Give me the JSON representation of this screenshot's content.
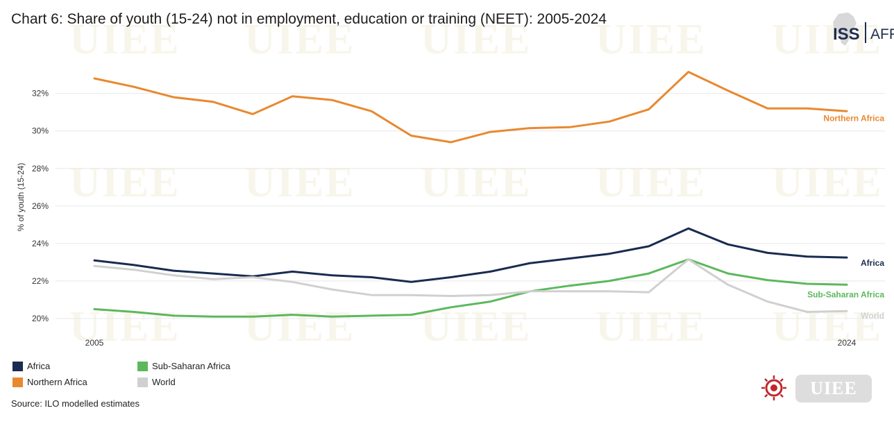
{
  "header": {
    "title": "Chart 6: Share of youth (15-24) not in employment, education or training (NEET): 2005-2024"
  },
  "logo": {
    "text": "ISS",
    "suffix": "AFRICA"
  },
  "chart_data": {
    "type": "line",
    "title": "Chart 6: Share of youth (15-24) not in employment, education or training (NEET): 2005-2024",
    "xlabel": "",
    "ylabel": "% of youth (15-24)",
    "x": [
      2005,
      2006,
      2007,
      2008,
      2009,
      2010,
      2011,
      2012,
      2013,
      2014,
      2015,
      2016,
      2017,
      2018,
      2019,
      2020,
      2021,
      2022,
      2023,
      2024
    ],
    "x_tick_labels": [
      "2005",
      "2024"
    ],
    "ylim": [
      19,
      33.8
    ],
    "y_ticks": [
      20,
      22,
      24,
      26,
      28,
      30,
      32
    ],
    "y_tick_format": "%",
    "grid": "horizontal",
    "legend_position": "bottom-left",
    "series": [
      {
        "name": "Northern Africa",
        "color": "#e8892f",
        "values": [
          32.8,
          32.35,
          31.8,
          31.55,
          30.9,
          31.85,
          31.65,
          31.05,
          29.75,
          29.4,
          29.95,
          30.15,
          30.2,
          30.5,
          31.15,
          33.15,
          32.15,
          31.2,
          31.2,
          31.05
        ]
      },
      {
        "name": "Africa",
        "color": "#1a2b50",
        "values": [
          23.1,
          22.85,
          22.55,
          22.4,
          22.25,
          22.5,
          22.3,
          22.2,
          21.95,
          22.2,
          22.5,
          22.95,
          23.2,
          23.45,
          23.85,
          24.8,
          23.95,
          23.5,
          23.3,
          23.25
        ]
      },
      {
        "name": "Sub-Saharan Africa",
        "color": "#5cb85c",
        "values": [
          20.5,
          20.35,
          20.15,
          20.1,
          20.1,
          20.2,
          20.1,
          20.15,
          20.2,
          20.6,
          20.9,
          21.45,
          21.75,
          22.0,
          22.4,
          23.15,
          22.4,
          22.05,
          21.85,
          21.8
        ]
      },
      {
        "name": "World",
        "color": "#d0d0d0",
        "values": [
          22.8,
          22.6,
          22.3,
          22.1,
          22.2,
          21.95,
          21.55,
          21.25,
          21.25,
          21.2,
          21.25,
          21.45,
          21.45,
          21.45,
          21.4,
          23.15,
          21.8,
          20.9,
          20.35,
          20.4
        ]
      }
    ]
  },
  "source": "Source: ILO modelled estimates",
  "watermark": "UIEE",
  "colors": {
    "title": "#1d1d1d",
    "gridline": "#e8e8e8",
    "logo": "#1f2d4d"
  }
}
